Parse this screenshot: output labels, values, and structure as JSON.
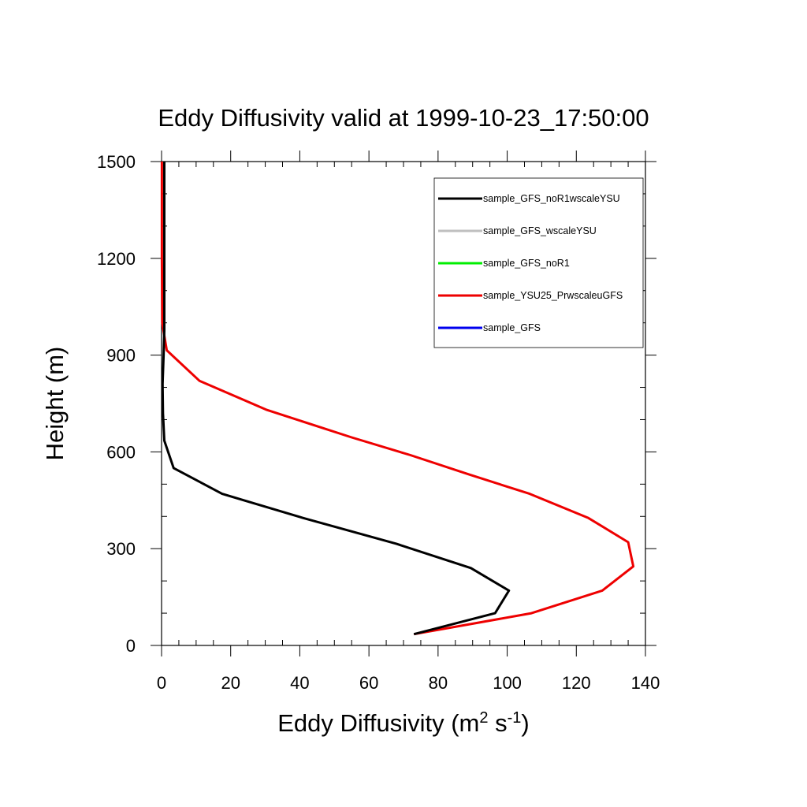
{
  "chart_data": {
    "type": "line",
    "title": "Eddy Diffusivity valid at 1999-10-23_17:50:00",
    "xlabel": {
      "main": "Eddy Diffusivity (m",
      "sup1": "2",
      "mid": " s",
      "sup2": "-1",
      "end": ")"
    },
    "ylabel": "Height (m)",
    "xlim": [
      0,
      140
    ],
    "ylim": [
      0,
      1500
    ],
    "xticks": [
      0,
      20,
      40,
      60,
      80,
      100,
      120,
      140
    ],
    "yticks": [
      0,
      300,
      600,
      900,
      1200,
      1500
    ],
    "xtick_labels": [
      "0",
      "20",
      "40",
      "60",
      "80",
      "100",
      "120",
      "140"
    ],
    "ytick_labels": [
      "0",
      "300",
      "600",
      "900",
      "1200",
      "1500"
    ],
    "x_minor_step": 5,
    "y_minor_step": 100,
    "grid": false,
    "legend_position": "top-right",
    "series": [
      {
        "name": "sample_GFS_noR1wscaleYSU",
        "color": "#000000",
        "points": [
          [
            73,
            35
          ],
          [
            96.5,
            100
          ],
          [
            100.5,
            170
          ],
          [
            89.5,
            240
          ],
          [
            68,
            315
          ],
          [
            41,
            395
          ],
          [
            17.5,
            470
          ],
          [
            3.5,
            550
          ],
          [
            0.8,
            635
          ],
          [
            0.4,
            720
          ],
          [
            0.3,
            810
          ],
          [
            0.6,
            900
          ],
          [
            0.8,
            975
          ],
          [
            0.8,
            1050
          ],
          [
            0.8,
            1150
          ],
          [
            0.8,
            1250
          ],
          [
            0.8,
            1350
          ],
          [
            0.8,
            1420
          ],
          [
            0.8,
            1500
          ]
        ]
      },
      {
        "name": "sample_GFS_wscaleYSU",
        "color": "#bfbfbf",
        "points": []
      },
      {
        "name": "sample_GFS_noR1",
        "color": "#00ee00",
        "points": []
      },
      {
        "name": "sample_YSU25_PrwscaleuGFS",
        "color": "#ee0000",
        "points": [
          [
            73,
            35
          ],
          [
            107,
            100
          ],
          [
            127.5,
            170
          ],
          [
            136.5,
            245
          ],
          [
            135,
            320
          ],
          [
            123.5,
            395
          ],
          [
            106.5,
            470
          ],
          [
            89,
            530
          ],
          [
            72,
            590
          ],
          [
            55,
            645
          ],
          [
            30.5,
            730
          ],
          [
            11,
            820
          ],
          [
            1.5,
            915
          ],
          [
            0.8,
            960
          ],
          [
            0.2,
            1000
          ],
          [
            0.1,
            1200
          ],
          [
            0.1,
            1400
          ],
          [
            0.1,
            1500
          ]
        ]
      },
      {
        "name": "sample_GFS",
        "color": "#0000ee",
        "points": []
      }
    ]
  }
}
